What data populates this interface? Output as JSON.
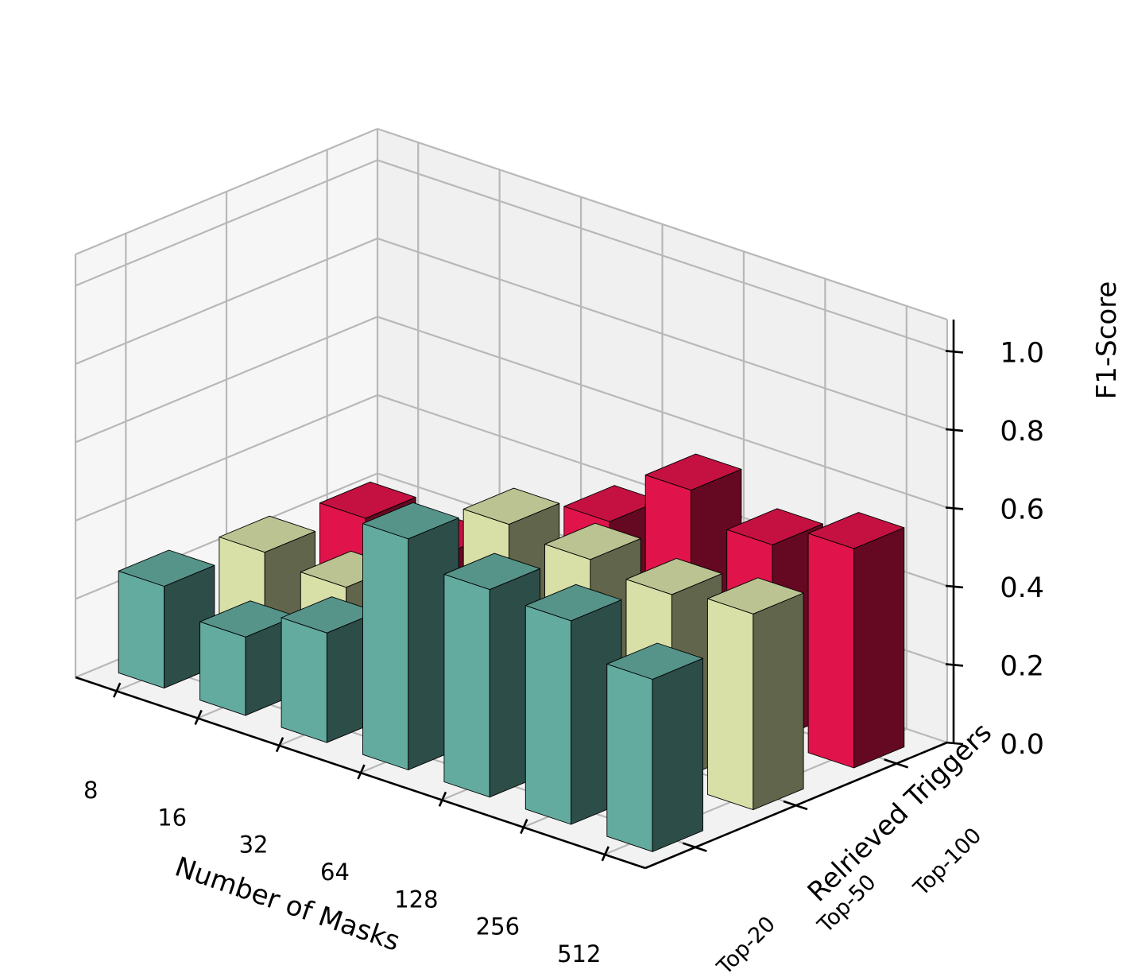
{
  "chart_data": {
    "type": "bar",
    "projection": "3d",
    "x_categories": [
      "8",
      "16",
      "32",
      "64",
      "128",
      "256",
      "512"
    ],
    "y_categories": [
      "Top-20",
      "Top-50",
      "Top-100"
    ],
    "xlabel": "Number of Masks",
    "ylabel": "Relrieved Triggers",
    "zlabel": "F1-Score",
    "zlim": [
      0,
      1.0
    ],
    "z_ticks": [
      "0.0",
      "0.2",
      "0.4",
      "0.6",
      "0.8",
      "1.0"
    ],
    "grid": true,
    "series": [
      {
        "name": "Top-20",
        "color": "#63aa9f",
        "values": [
          0.26,
          0.2,
          0.28,
          0.59,
          0.53,
          0.52,
          0.44
        ]
      },
      {
        "name": "Top-50",
        "color": "#d8e0a8",
        "values": [
          0.24,
          0.22,
          0.24,
          0.52,
          0.5,
          0.48,
          0.5
        ]
      },
      {
        "name": "Top-100",
        "color": "#e1134b",
        "values": [
          0.22,
          0.2,
          0.2,
          0.42,
          0.57,
          0.5,
          0.56
        ]
      }
    ]
  }
}
